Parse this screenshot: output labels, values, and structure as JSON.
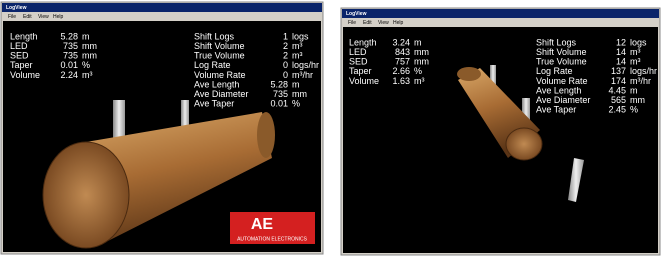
{
  "windows": [
    {
      "title": "LogView",
      "menu": [
        "File",
        "Edit",
        "View",
        "Help"
      ],
      "left_stats": [
        {
          "label": "Length",
          "value": "5.28",
          "unit": "m"
        },
        {
          "label": "LED",
          "value": "735",
          "unit": "mm"
        },
        {
          "label": "SED",
          "value": "735",
          "unit": "mm"
        },
        {
          "label": "Taper",
          "value": "0.01",
          "unit": "%"
        },
        {
          "label": "Volume",
          "value": "2.24",
          "unit": "m³"
        }
      ],
      "right_stats": [
        {
          "label": "Shift Logs",
          "value": "1",
          "unit": "logs"
        },
        {
          "label": "Shift Volume",
          "value": "2",
          "unit": "m³"
        },
        {
          "label": "True Volume",
          "value": "2",
          "unit": "m³"
        },
        {
          "label": "Log Rate",
          "value": "0",
          "unit": "logs/hr"
        },
        {
          "label": "Volume Rate",
          "value": "0",
          "unit": "m³/hr"
        },
        {
          "label": "Ave Length",
          "value": "5.28",
          "unit": "m"
        },
        {
          "label": "Ave Diameter",
          "value": "735",
          "unit": "mm"
        },
        {
          "label": "Ave Taper",
          "value": "0.01",
          "unit": "%"
        }
      ],
      "logo": {
        "mark": "AE",
        "text": "AUTOMATION ELECTRONICS"
      }
    },
    {
      "title": "LogView",
      "menu": [
        "File",
        "Edit",
        "View",
        "Help"
      ],
      "left_stats": [
        {
          "label": "Length",
          "value": "3.24",
          "unit": "m"
        },
        {
          "label": "LED",
          "value": "843",
          "unit": "mm"
        },
        {
          "label": "SED",
          "value": "757",
          "unit": "mm"
        },
        {
          "label": "Taper",
          "value": "2.66",
          "unit": "%"
        },
        {
          "label": "Volume",
          "value": "1.63",
          "unit": "m³"
        }
      ],
      "right_stats": [
        {
          "label": "Shift Logs",
          "value": "12",
          "unit": "logs"
        },
        {
          "label": "Shift Volume",
          "value": "14",
          "unit": "m³"
        },
        {
          "label": "True Volume",
          "value": "14",
          "unit": "m³"
        },
        {
          "label": "Log Rate",
          "value": "137",
          "unit": "logs/hr"
        },
        {
          "label": "Volume Rate",
          "value": "174",
          "unit": "m³/hr"
        },
        {
          "label": "Ave Length",
          "value": "4.45",
          "unit": "m"
        },
        {
          "label": "Ave Diameter",
          "value": "565",
          "unit": "mm"
        },
        {
          "label": "Ave Taper",
          "value": "2.45",
          "unit": "%"
        }
      ]
    }
  ]
}
